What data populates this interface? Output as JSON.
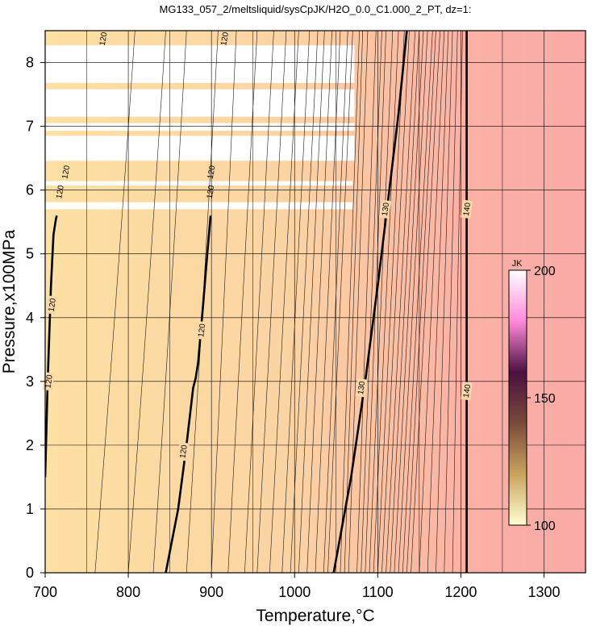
{
  "chart_data": {
    "type": "heatmap",
    "title": "MG133_057_2/meltsliquid/sysCpJK/H2O_0.0_C1.000_2_PT, dz=1:",
    "xlabel": "Temperature,°C",
    "ylabel": "Pressure,x100MPa",
    "xlim": [
      700,
      1350
    ],
    "ylim": [
      0,
      8.5
    ],
    "x_ticks": [
      "700",
      "800",
      "900",
      "1000",
      "1100",
      "1200",
      "1300"
    ],
    "y_ticks": [
      "0",
      "1",
      "2",
      "3",
      "4",
      "5",
      "6",
      "7",
      "8"
    ],
    "grid": true,
    "colorbar": {
      "label": "JK",
      "range": [
        100,
        200
      ],
      "ticks": [
        "100",
        "150",
        "200"
      ],
      "colors": [
        "#ffffd0",
        "#c9a45e",
        "#7a4a3a",
        "#4a1040",
        "#ff8ad8",
        "#ffffff"
      ],
      "position": "right"
    },
    "background_gradient": {
      "x": [
        700,
        1000,
        1100,
        1200,
        1350
      ],
      "colors": [
        "#fde0a3",
        "#fbd3a3",
        "#fbc2a2",
        "#fbb2a5",
        "#faa9a7"
      ]
    },
    "labeled_contours": [
      {
        "value": 120,
        "points": [
          [
            700,
            1.5
          ],
          [
            703,
            3.0
          ],
          [
            707,
            4.5
          ],
          [
            710,
            5.3
          ],
          [
            713,
            5.55
          ],
          [
            714,
            5.6
          ]
        ],
        "labels": [
          {
            "text": "120",
            "x": 704,
            "y": 3.0
          },
          {
            "text": "120",
            "x": 708,
            "y": 4.2
          }
        ]
      },
      {
        "value": 120,
        "points": [
          [
            845,
            0
          ],
          [
            860,
            1.0
          ],
          [
            870,
            2.0
          ],
          [
            878,
            2.9
          ],
          [
            881,
            3.05
          ],
          [
            884,
            3.3
          ],
          [
            890,
            4.2
          ],
          [
            895,
            5.0
          ],
          [
            899,
            5.6
          ]
        ],
        "labels": [
          {
            "text": "120",
            "x": 866,
            "y": 1.9
          },
          {
            "text": "120",
            "x": 888,
            "y": 3.8
          }
        ]
      },
      {
        "value": 130,
        "points": [
          [
            1047,
            0
          ],
          [
            1068,
            1.5
          ],
          [
            1085,
            3.0
          ],
          [
            1100,
            4.5
          ],
          [
            1114,
            6.0
          ],
          [
            1125,
            7.2
          ],
          [
            1135,
            8.5
          ]
        ],
        "labels": [
          {
            "text": "130",
            "x": 1080,
            "y": 2.9
          },
          {
            "text": "130",
            "x": 1109,
            "y": 5.7
          }
        ]
      },
      {
        "value": 140,
        "points": [
          [
            1207,
            0
          ],
          [
            1207,
            8.5
          ]
        ],
        "labels": [
          {
            "text": "140",
            "x": 1207,
            "y": 2.85
          },
          {
            "text": "140",
            "x": 1207,
            "y": 5.7
          }
        ]
      }
    ],
    "thin_contours": {
      "bottom_x": [
        760,
        800,
        830,
        870,
        900,
        920,
        940,
        955,
        970,
        985,
        995,
        1005,
        1015,
        1025,
        1035,
        1040,
        1055,
        1060,
        1065,
        1075,
        1080,
        1085,
        1090,
        1095,
        1100,
        1105,
        1110,
        1115,
        1120,
        1125,
        1130,
        1135,
        1140,
        1150,
        1160,
        1170,
        1180,
        1190
      ],
      "top_x": [
        808,
        845,
        870,
        908,
        930,
        955,
        975,
        990,
        1005,
        1018,
        1028,
        1036,
        1045,
        1055,
        1064,
        1070,
        1078,
        1082,
        1088,
        1098,
        1105,
        1110,
        1118,
        1125,
        1132,
        1138,
        1145,
        1150,
        1155,
        1160,
        1166,
        1170,
        1175,
        1180,
        1185,
        1190,
        1196,
        1202
      ]
    },
    "blank_bands": [
      {
        "x": [
          700,
          1072
        ],
        "y": [
          7.68,
          8.27
        ]
      },
      {
        "x": [
          700,
          1072
        ],
        "y": [
          7.15,
          7.58
        ]
      },
      {
        "x": [
          700,
          1072
        ],
        "y": [
          6.93,
          7.05
        ]
      },
      {
        "x": [
          700,
          1072
        ],
        "y": [
          6.46,
          6.85
        ]
      },
      {
        "x": [
          700,
          1070
        ],
        "y": [
          6.07,
          6.14
        ]
      },
      {
        "x": [
          700,
          1070
        ],
        "y": [
          5.7,
          5.81
        ]
      }
    ],
    "small_labels": [
      {
        "text": "120",
        "x": 770,
        "y": 8.37
      },
      {
        "text": "120",
        "x": 916,
        "y": 8.37
      },
      {
        "text": "120",
        "x": 725,
        "y": 6.28
      },
      {
        "text": "120",
        "x": 900,
        "y": 6.28
      },
      {
        "text": "120",
        "x": 718,
        "y": 5.97
      },
      {
        "text": "120",
        "x": 899,
        "y": 5.97
      }
    ]
  }
}
